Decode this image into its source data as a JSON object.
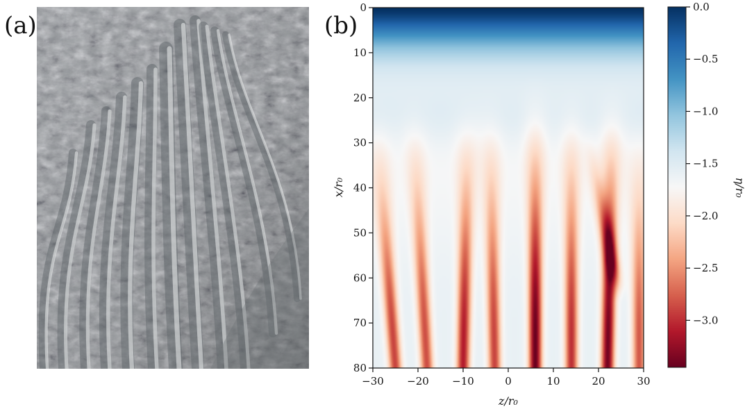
{
  "panels": {
    "a_label": "(a)",
    "b_label": "(b)"
  },
  "photo": {
    "subject": "weathered limestone rock face with parallel vertical flutes (rillenkarren)"
  },
  "chart_data": {
    "type": "heatmap",
    "title": "",
    "xlabel": "z/r₀",
    "ylabel": "x/r₀",
    "colorbar_label": "η/r₀",
    "xlim": [
      -30,
      30
    ],
    "ylim": [
      80,
      0
    ],
    "y_inverted": true,
    "x_ticks": [
      -30,
      -20,
      -10,
      0,
      10,
      20,
      30
    ],
    "x_tick_labels": [
      "−30",
      "−20",
      "−10",
      "0",
      "10",
      "20",
      "30"
    ],
    "y_ticks": [
      0,
      10,
      20,
      30,
      40,
      50,
      60,
      70,
      80
    ],
    "y_tick_labels": [
      "0",
      "10",
      "20",
      "30",
      "40",
      "50",
      "60",
      "70",
      "80"
    ],
    "colorbar_range": [
      -3.45,
      0.0
    ],
    "colorbar_ticks": [
      0.0,
      -0.5,
      -1.0,
      -1.5,
      -2.0,
      -2.5,
      -3.0
    ],
    "colorbar_tick_labels": [
      "0.0",
      "−0.5",
      "−1.0",
      "−1.5",
      "−2.0",
      "−2.5",
      "−3.0"
    ],
    "colormap": "RdBu (dark red = low, dark blue = high)",
    "colormap_stops": [
      "#67001f",
      "#b2182b",
      "#d6604d",
      "#f4a582",
      "#fddbc7",
      "#f7f7f7",
      "#d1e5f0",
      "#92c5de",
      "#4393c3",
      "#2166ac",
      "#053061"
    ],
    "grid": false,
    "field_description": "Near 0 at x=0 (top), decreasing to about -1.5 by x≈20; vertical ridges of strongly negative η grow downstream",
    "ridges": [
      {
        "z_bottom": -25,
        "z_top": -29,
        "x_start": 26,
        "min_value": -2.9
      },
      {
        "z_bottom": -18,
        "z_top": -21,
        "x_start": 24,
        "min_value": -2.85
      },
      {
        "z_bottom": -10,
        "z_top": -9,
        "x_start": 24,
        "min_value": -3.1
      },
      {
        "z_bottom": -3,
        "z_top": -4,
        "x_start": 23,
        "min_value": -2.9
      },
      {
        "z_bottom": 6,
        "z_top": 6,
        "x_start": 21,
        "min_value": -3.45
      },
      {
        "z_bottom": 14,
        "z_top": 14,
        "x_start": 22,
        "min_value": -3.0
      },
      {
        "z_bottom": 22,
        "z_top": 23,
        "x_start": 22,
        "min_value": -3.4
      },
      {
        "z_bottom": 29,
        "z_top": 29,
        "x_start": 30,
        "min_value": -2.8
      }
    ],
    "branch": {
      "z_top": 18,
      "z_bottom": 24,
      "x_start": 30,
      "x_merge": 62,
      "min_value": -2.6
    }
  }
}
